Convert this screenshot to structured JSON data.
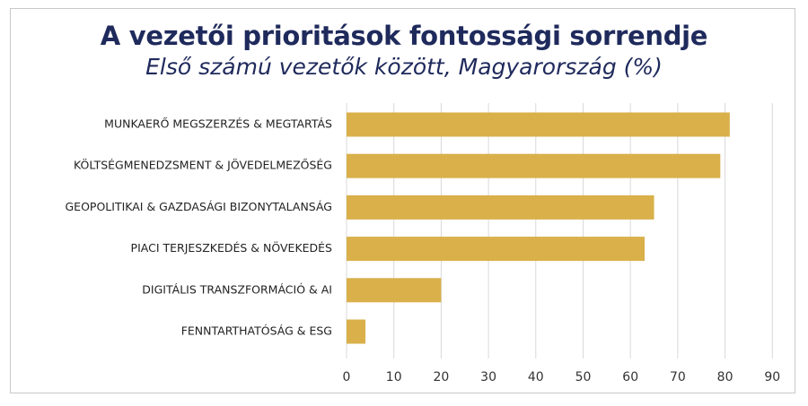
{
  "chart_data": {
    "type": "bar",
    "orientation": "horizontal",
    "title": "A vezetői prioritások fontossági sorrendje",
    "subtitle": "Első számú vezetők között, Magyarország (%)",
    "categories": [
      "MUNKAERŐ MEGSZERZÉS & MEGTARTÁS",
      "KÖLTSÉGMENEDZSMENT & JÖVEDELMEZŐSÉG",
      "GEOPOLITIKAI & GAZDASÁGI BIZONYTALANSÁG",
      "PIACI TERJESZKEDÉS & NÖVEKEDÉS",
      "DIGITÁLIS TRANSZFORMÁCIÓ & AI",
      "FENNTARTHATÓSÁG & ESG"
    ],
    "values": [
      81,
      79,
      65,
      63,
      20,
      4
    ],
    "xlim": [
      0,
      90
    ],
    "xticks": [
      "0",
      "10",
      "20",
      "30",
      "40",
      "50",
      "60",
      "70",
      "80",
      "90"
    ],
    "grid": true,
    "legend": "none",
    "bar_color": "#d9b04a",
    "title_color": "#1f2a5c"
  }
}
